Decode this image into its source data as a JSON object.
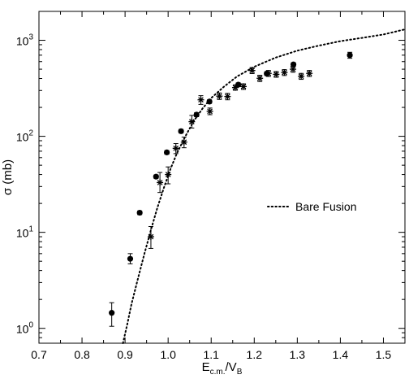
{
  "chart_data": {
    "type": "scatter",
    "title": "",
    "xlabel": {
      "main": "E",
      "sub1": "c.m.",
      "mid": "/V",
      "sub2": "B"
    },
    "ylabel": "σ (mb)",
    "x_range": [
      0.7,
      1.55
    ],
    "y_range": [
      0.7,
      2000
    ],
    "y_scale": "log",
    "x_ticks": [
      {
        "v": 0.7,
        "label": "0.7"
      },
      {
        "v": 0.8,
        "label": "0.8"
      },
      {
        "v": 0.9,
        "label": "0.9"
      },
      {
        "v": 1.0,
        "label": "1.0"
      },
      {
        "v": 1.1,
        "label": "1.1"
      },
      {
        "v": 1.2,
        "label": "1.2"
      },
      {
        "v": 1.3,
        "label": "1.3"
      },
      {
        "v": 1.4,
        "label": "1.4"
      },
      {
        "v": 1.5,
        "label": "1.5"
      }
    ],
    "y_ticks": [
      {
        "v": 1,
        "base": "10",
        "exp": "0"
      },
      {
        "v": 10,
        "base": "10",
        "exp": "1"
      },
      {
        "v": 100,
        "base": "10",
        "exp": "2"
      },
      {
        "v": 1000,
        "base": "10",
        "exp": "3"
      }
    ],
    "grid": false,
    "legend": {
      "position": "center-right",
      "entries": [
        "Bare Fusion"
      ]
    },
    "series": [
      {
        "marker": "circle",
        "points": [
          {
            "x": 0.869,
            "y": 1.45,
            "lo": 1.05,
            "hi": 1.85
          },
          {
            "x": 0.912,
            "y": 5.3,
            "lo": 4.7,
            "hi": 6.0
          },
          {
            "x": 0.934,
            "y": 16.0,
            "lo": 15.3,
            "hi": 16.7
          },
          {
            "x": 0.972,
            "y": 38.0,
            "lo": 36.5,
            "hi": 39.5
          },
          {
            "x": 0.997,
            "y": 68.0,
            "lo": 65.0,
            "hi": 71.0
          },
          {
            "x": 1.03,
            "y": 113.0,
            "lo": 108.0,
            "hi": 118.0
          },
          {
            "x": 1.066,
            "y": 168.0,
            "lo": 160.0,
            "hi": 176.0
          },
          {
            "x": 1.096,
            "y": 230.0,
            "lo": 220.0,
            "hi": 240.0
          },
          {
            "x": 1.163,
            "y": 345.0,
            "lo": 330.0,
            "hi": 360.0
          },
          {
            "x": 1.229,
            "y": 450.0,
            "lo": 430.0,
            "hi": 470.0
          },
          {
            "x": 1.291,
            "y": 560.0,
            "lo": 535.0,
            "hi": 585.0
          },
          {
            "x": 1.422,
            "y": 700.0,
            "lo": 650.0,
            "hi": 750.0
          }
        ]
      },
      {
        "marker": "asterisk",
        "points": [
          {
            "x": 0.96,
            "y": 9.0,
            "lo": 6.8,
            "hi": 11.5
          },
          {
            "x": 0.981,
            "y": 33.0,
            "lo": 26.0,
            "hi": 42.0
          },
          {
            "x": 1.0,
            "y": 40.0,
            "lo": 32.0,
            "hi": 48.0
          },
          {
            "x": 1.018,
            "y": 75.0,
            "lo": 66.0,
            "hi": 84.0
          },
          {
            "x": 1.037,
            "y": 87.0,
            "lo": 76.0,
            "hi": 98.0
          },
          {
            "x": 1.055,
            "y": 142.0,
            "lo": 122.0,
            "hi": 165.0
          },
          {
            "x": 1.076,
            "y": 240.0,
            "lo": 215.0,
            "hi": 265.0
          },
          {
            "x": 1.097,
            "y": 182.0,
            "lo": 168.0,
            "hi": 197.0
          },
          {
            "x": 1.119,
            "y": 262.0,
            "lo": 242.0,
            "hi": 283.0
          },
          {
            "x": 1.138,
            "y": 260.0,
            "lo": 240.0,
            "hi": 280.0
          },
          {
            "x": 1.156,
            "y": 322.0,
            "lo": 302.0,
            "hi": 343.0
          },
          {
            "x": 1.175,
            "y": 330.0,
            "lo": 308.0,
            "hi": 352.0
          },
          {
            "x": 1.195,
            "y": 485.0,
            "lo": 450.0,
            "hi": 520.0
          },
          {
            "x": 1.213,
            "y": 402.0,
            "lo": 372.0,
            "hi": 432.0
          },
          {
            "x": 1.233,
            "y": 452.0,
            "lo": 420.0,
            "hi": 485.0
          },
          {
            "x": 1.251,
            "y": 442.0,
            "lo": 412.0,
            "hi": 472.0
          },
          {
            "x": 1.27,
            "y": 462.0,
            "lo": 430.0,
            "hi": 495.0
          },
          {
            "x": 1.29,
            "y": 500.0,
            "lo": 465.0,
            "hi": 535.0
          },
          {
            "x": 1.309,
            "y": 422.0,
            "lo": 392.0,
            "hi": 452.0
          },
          {
            "x": 1.328,
            "y": 452.0,
            "lo": 420.0,
            "hi": 485.0
          }
        ]
      }
    ],
    "curve": {
      "name": "Bare Fusion",
      "style": "dotted",
      "x": [
        0.895,
        0.905,
        0.915,
        0.93,
        0.945,
        0.96,
        0.975,
        0.99,
        1.005,
        1.02,
        1.04,
        1.06,
        1.08,
        1.1,
        1.13,
        1.16,
        1.2,
        1.25,
        1.3,
        1.35,
        1.4,
        1.45,
        1.5,
        1.55
      ],
      "y": [
        0.7,
        1.1,
        1.8,
        3.3,
        6.0,
        10.6,
        18.0,
        29.0,
        45.0,
        66.0,
        100.0,
        145.0,
        195.0,
        250.0,
        330.0,
        420.0,
        530.0,
        660.0,
        780.0,
        880.0,
        980.0,
        1060.0,
        1150.0,
        1300.0
      ]
    }
  }
}
